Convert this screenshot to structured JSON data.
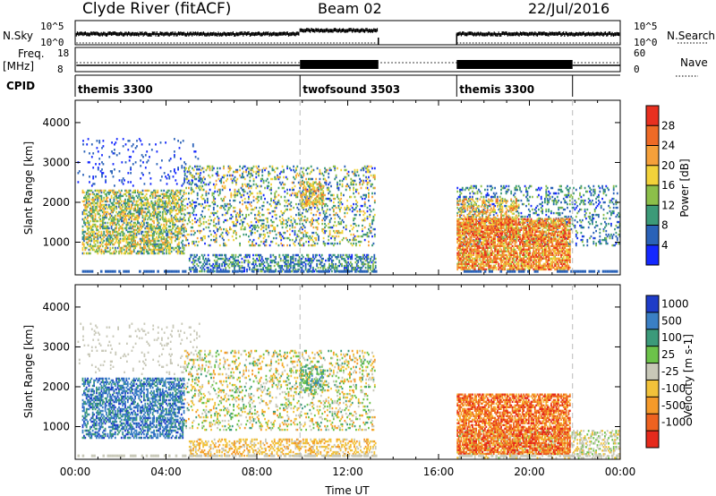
{
  "header": {
    "station": "Clyde River (fitACF)",
    "beam": "Beam 02",
    "date": "22/Jul/2016"
  },
  "status_panels": {
    "nsky_label": "N.Sky",
    "nsky_ticks": [
      "10^5",
      "10^0"
    ],
    "nsearch_label": "N.Search",
    "nsearch_ticks": [
      "10^5",
      "10^0"
    ],
    "freq_label_line1": "Freq.",
    "freq_label_line2": "[MHz]",
    "freq_ticks": [
      "18",
      "8"
    ],
    "nave_label": "Nave",
    "nave_ticks": [
      "60",
      "0"
    ],
    "cpid_label": "CPID",
    "cpid_segments": [
      {
        "name": "themis 3300",
        "start": 0.0,
        "end": 9.9
      },
      {
        "name": "twofsound 3503",
        "start": 9.9,
        "end": 16.8
      },
      {
        "name": "themis 3300",
        "start": 16.8,
        "end": 21.9
      }
    ],
    "data_gaps": [
      {
        "start": 13.35,
        "end": 16.8
      }
    ]
  },
  "chart_data": [
    {
      "type": "heatmap",
      "name": "power",
      "ylabel": "Slant Range [km]",
      "xlabel": "",
      "xlim": [
        0,
        24
      ],
      "ylim": [
        180,
        4560
      ],
      "yticks": [
        "1000",
        "2000",
        "3000",
        "4000"
      ],
      "colorbar_label": "Power [dB]",
      "colorbar_ticks": [
        "4",
        "8",
        "12",
        "16",
        "20",
        "24",
        "28"
      ],
      "colors": [
        "#1428ff",
        "#2a62b8",
        "#3c9a78",
        "#8cbf4a",
        "#f2d23a",
        "#f5a03a",
        "#ee6a26",
        "#e83020"
      ],
      "clusters": [
        {
          "t": [
            0.3,
            4.8
          ],
          "r": [
            700,
            2300
          ],
          "density": 0.55,
          "level": [
            1,
            5
          ]
        },
        {
          "t": [
            0.1,
            5.5
          ],
          "r": [
            2400,
            3600
          ],
          "density": 0.06,
          "level": [
            0,
            1
          ]
        },
        {
          "t": [
            4.8,
            13.2
          ],
          "r": [
            900,
            2900
          ],
          "density": 0.22,
          "level": [
            0,
            5
          ]
        },
        {
          "t": [
            5.0,
            13.2
          ],
          "r": [
            250,
            700
          ],
          "density": 0.45,
          "level": [
            0,
            3
          ]
        },
        {
          "t": [
            9.9,
            10.9
          ],
          "r": [
            1900,
            2500
          ],
          "density": 0.5,
          "level": [
            2,
            6
          ]
        },
        {
          "t": [
            16.8,
            21.8
          ],
          "r": [
            300,
            1600
          ],
          "density": 0.75,
          "level": [
            3,
            7
          ]
        },
        {
          "t": [
            16.8,
            24.0
          ],
          "r": [
            900,
            2400
          ],
          "density": 0.2,
          "level": [
            0,
            3
          ]
        },
        {
          "t": [
            16.8,
            19.5
          ],
          "r": [
            1200,
            2100
          ],
          "density": 0.35,
          "level": [
            3,
            6
          ]
        }
      ]
    },
    {
      "type": "heatmap",
      "name": "velocity",
      "ylabel": "Slant Range [km]",
      "xlabel": "Time UT",
      "xlim": [
        0,
        24
      ],
      "ylim": [
        180,
        4560
      ],
      "yticks": [
        "1000",
        "2000",
        "3000",
        "4000"
      ],
      "xticks": [
        "00:00",
        "04:00",
        "08:00",
        "12:00",
        "16:00",
        "20:00",
        "00:00"
      ],
      "colorbar_label": "Velocity [m s-1]",
      "colorbar_ticks": [
        "1000",
        "500",
        "100",
        "25",
        "-25",
        "-100",
        "-500",
        "-1000"
      ],
      "colors": [
        "#1e3cc8",
        "#3a7fc4",
        "#3c9a7a",
        "#6cc24a",
        "#c8c8b8",
        "#f2c23a",
        "#f59a2a",
        "#ee6220",
        "#e62a1c"
      ],
      "clusters": [
        {
          "t": [
            0.3,
            4.8
          ],
          "r": [
            700,
            2200
          ],
          "density": 0.5,
          "level": [
            0,
            2
          ]
        },
        {
          "t": [
            0.1,
            5.5
          ],
          "r": [
            2300,
            3600
          ],
          "density": 0.06,
          "level": [
            4,
            4
          ]
        },
        {
          "t": [
            4.8,
            13.2
          ],
          "r": [
            900,
            2900
          ],
          "density": 0.2,
          "level": [
            2,
            6
          ]
        },
        {
          "t": [
            5.0,
            13.2
          ],
          "r": [
            250,
            700
          ],
          "density": 0.4,
          "level": [
            4,
            6
          ]
        },
        {
          "t": [
            9.9,
            10.9
          ],
          "r": [
            1900,
            2500
          ],
          "density": 0.45,
          "level": [
            1,
            3
          ]
        },
        {
          "t": [
            16.8,
            21.8
          ],
          "r": [
            300,
            1800
          ],
          "density": 0.7,
          "level": [
            5,
            8
          ]
        },
        {
          "t": [
            16.8,
            24.0
          ],
          "r": [
            200,
            900
          ],
          "density": 0.35,
          "level": [
            3,
            5
          ]
        }
      ]
    }
  ]
}
